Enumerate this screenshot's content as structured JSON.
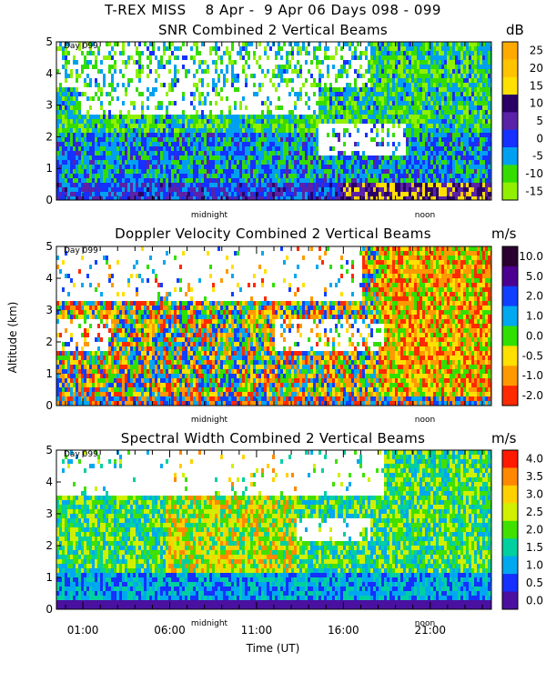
{
  "header": {
    "title": "T-REX MISS    8 Apr -  9 Apr 06 Days 098 - 099"
  },
  "chart_data": [
    {
      "type": "heatmap",
      "title": "SNR Combined 2 Vertical Beams",
      "ylabel": "",
      "ylim": [
        0,
        5
      ],
      "yticks": [
        "0",
        "1",
        "2",
        "3",
        "4",
        "5"
      ],
      "day_label": "Day 099",
      "mid_labels": [
        "midnight",
        "noon"
      ],
      "colorbar": {
        "unit": "dB",
        "labels": [
          "25",
          "20",
          "15",
          "10",
          "5",
          "0",
          "-5",
          "-10",
          "-15"
        ],
        "colors": [
          "#ffaa00",
          "#ffc300",
          "#ffe000",
          "#2a0066",
          "#5a22a8",
          "#1530ff",
          "#00a0f0",
          "#35dc00",
          "#90f000"
        ]
      }
    },
    {
      "type": "heatmap",
      "title": "Doppler Velocity Combined 2 Vertical Beams",
      "ylabel": "Altitude (km)",
      "ylim": [
        0,
        5
      ],
      "yticks": [
        "0",
        "1",
        "2",
        "3",
        "4",
        "5"
      ],
      "day_label": "Day 099",
      "mid_labels": [
        "midnight",
        "noon"
      ],
      "colorbar": {
        "unit": "m/s",
        "labels": [
          "10.0",
          "5.0",
          "2.0",
          "1.0",
          "0.0",
          "-0.5",
          "-1.0",
          "-2.0"
        ],
        "colors": [
          "#2a0030",
          "#4a0090",
          "#1040ff",
          "#00a8f0",
          "#30e000",
          "#ffe000",
          "#ff9900",
          "#ff2a00"
        ]
      }
    },
    {
      "type": "heatmap",
      "title": "Spectral Width Combined 2 Vertical Beams",
      "ylabel": "",
      "ylim": [
        0,
        5
      ],
      "yticks": [
        "0",
        "1",
        "2",
        "3",
        "4",
        "5"
      ],
      "day_label": "Day 099",
      "mid_labels": [
        "midnight",
        "noon"
      ],
      "xlabel": "Time (UT)",
      "xticks": [
        "01:00",
        "06:00",
        "11:00",
        "16:00",
        "21:00"
      ],
      "colorbar": {
        "unit": "m/s",
        "labels": [
          "4.0",
          "3.5",
          "3.0",
          "2.5",
          "2.0",
          "1.5",
          "1.0",
          "0.5",
          "0.0"
        ],
        "colors": [
          "#ff1a00",
          "#ff8800",
          "#ffd000",
          "#d0f000",
          "#40e000",
          "#00d0a0",
          "#00a8f0",
          "#1530ff",
          "#4a10a0"
        ]
      }
    }
  ]
}
